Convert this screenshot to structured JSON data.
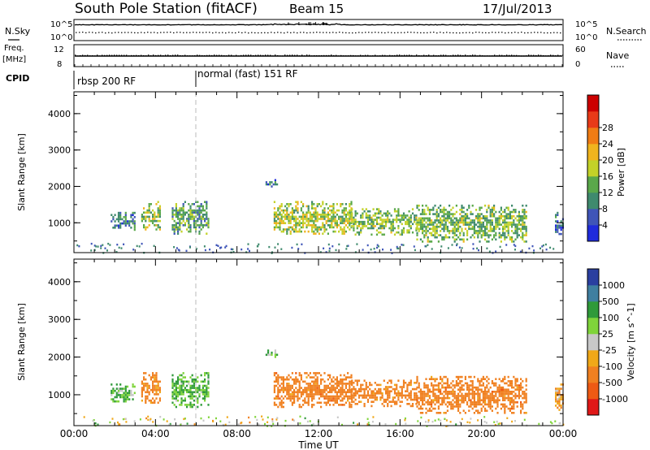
{
  "header": {
    "title": "South Pole Station (fitACF)",
    "beam": "Beam 15",
    "date": "17/Jul/2013"
  },
  "side_labels": {
    "nsky": "N.Sky",
    "nsearch": "N.Search",
    "freq_top": "Freq.",
    "freq_unit": "[MHz]",
    "nave": "Nave",
    "cpid": "CPID"
  },
  "cpid": {
    "left": "rbsp 200 RF",
    "right": "normal (fast) 151 RF"
  },
  "strip_ticks": {
    "noise_left": [
      "10^5",
      "10^0"
    ],
    "noise_right": [
      "10^5",
      "10^0"
    ],
    "freq_left": [
      "12",
      "8"
    ],
    "nave_right": [
      "60",
      "0"
    ]
  },
  "colors": {
    "power_scale": [
      "#1f2bdc",
      "#3f55b8",
      "#3f8a6e",
      "#5aa84a",
      "#c3d228",
      "#f0b41e",
      "#f07c14",
      "#e83a18",
      "#cc0000"
    ],
    "velocity_scale": [
      "#e01818",
      "#ee5a14",
      "#f08020",
      "#f0a818",
      "#c8c8c8",
      "#7fd43a",
      "#2f9a3a",
      "#3f7fa0",
      "#2a3fa0"
    ],
    "cpid_divider": "#bbbbbb"
  },
  "chart_data": [
    {
      "type": "heatmap",
      "title": "",
      "xlabel": "",
      "ylabel": "Slant Range [km]",
      "x_ticks": [
        "00:00",
        "04:00",
        "08:00",
        "12:00",
        "16:00",
        "20:00",
        "00:00"
      ],
      "y_ticks": [
        "1000",
        "2000",
        "3000",
        "4000"
      ],
      "xlim": [
        0,
        24
      ],
      "ylim": [
        180,
        4600
      ],
      "colorbar": {
        "label": "Power [dB]",
        "ticks": [
          "4",
          "8",
          "12",
          "16",
          "20",
          "24",
          "28"
        ],
        "range": [
          0,
          30
        ]
      },
      "echo_regions": [
        {
          "x": [
            1.8,
            3.0
          ],
          "y": [
            800,
            1300
          ],
          "value": 8
        },
        {
          "x": [
            3.3,
            4.2
          ],
          "y": [
            800,
            1600
          ],
          "value": 14
        },
        {
          "x": [
            4.8,
            6.6
          ],
          "y": [
            700,
            1600
          ],
          "value": 10
        },
        {
          "x": [
            9.4,
            10.0
          ],
          "y": [
            2000,
            2200
          ],
          "value": 6
        },
        {
          "x": [
            9.8,
            13.6
          ],
          "y": [
            700,
            1600
          ],
          "value": 14
        },
        {
          "x": [
            13.6,
            16.8
          ],
          "y": [
            700,
            1400
          ],
          "value": 12
        },
        {
          "x": [
            16.8,
            22.2
          ],
          "y": [
            500,
            1500
          ],
          "value": 12
        },
        {
          "x": [
            23.6,
            24.0
          ],
          "y": [
            600,
            1300
          ],
          "value": 6
        }
      ]
    },
    {
      "type": "heatmap",
      "title": "",
      "xlabel": "Time UT",
      "ylabel": "Slant Range [km]",
      "x_ticks": [
        "00:00",
        "04:00",
        "08:00",
        "12:00",
        "16:00",
        "20:00",
        "00:00"
      ],
      "y_ticks": [
        "1000",
        "2000",
        "3000",
        "4000"
      ],
      "xlim": [
        0,
        24
      ],
      "ylim": [
        180,
        4600
      ],
      "colorbar": {
        "label": "Velocity [m s^-1]",
        "ticks": [
          "1000",
          "500",
          "100",
          "25",
          "-25",
          "-100",
          "-500",
          "-1000"
        ],
        "range": [
          -1500,
          1500
        ]
      },
      "echo_regions": [
        {
          "x": [
            1.8,
            3.0
          ],
          "y": [
            800,
            1300
          ],
          "value": 100
        },
        {
          "x": [
            3.3,
            4.2
          ],
          "y": [
            800,
            1600
          ],
          "value": -200
        },
        {
          "x": [
            4.8,
            6.6
          ],
          "y": [
            700,
            1600
          ],
          "value": 120
        },
        {
          "x": [
            9.4,
            10.0
          ],
          "y": [
            2000,
            2200
          ],
          "value": 100
        },
        {
          "x": [
            9.8,
            13.6
          ],
          "y": [
            700,
            1600
          ],
          "value": -300
        },
        {
          "x": [
            13.6,
            16.8
          ],
          "y": [
            700,
            1400
          ],
          "value": -250
        },
        {
          "x": [
            16.8,
            22.2
          ],
          "y": [
            500,
            1500
          ],
          "value": -300
        },
        {
          "x": [
            23.6,
            24.0
          ],
          "y": [
            600,
            1300
          ],
          "value": -100
        }
      ]
    }
  ]
}
